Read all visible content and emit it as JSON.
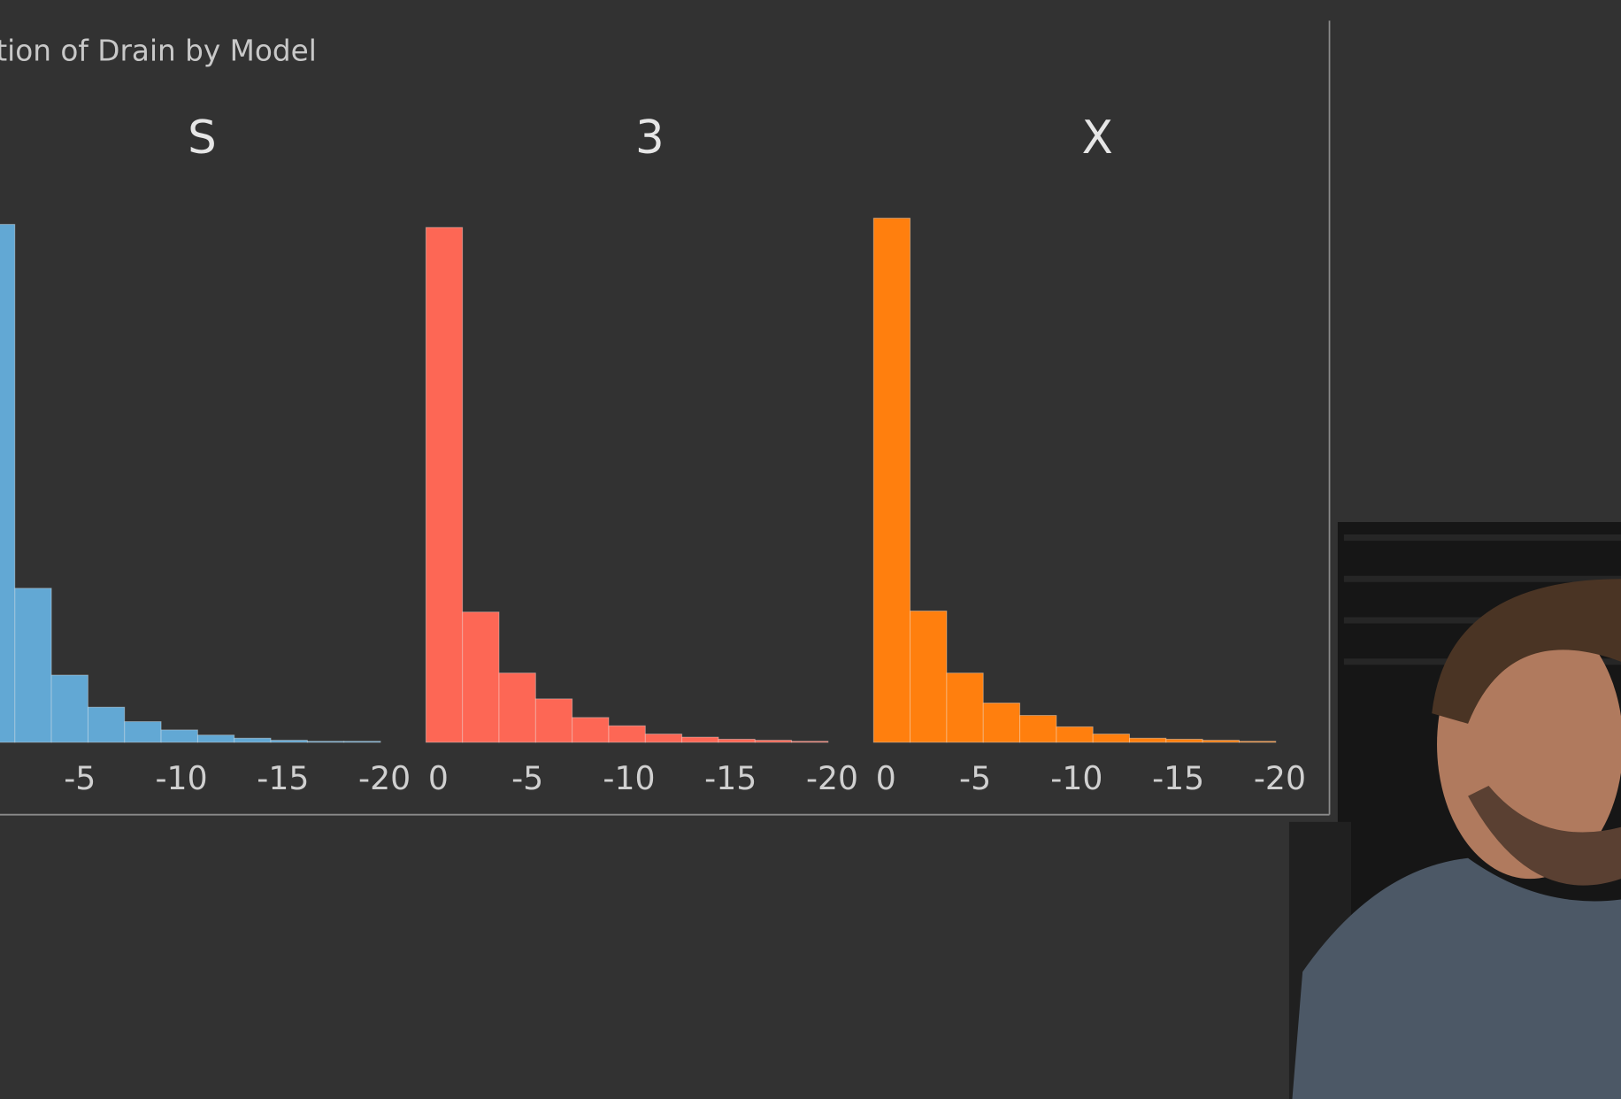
{
  "chart_data": {
    "type": "histogram",
    "title": "tion of Drain by Model",
    "bins": [
      0,
      -1.8,
      -3.6,
      -5.4,
      -7.2,
      -9,
      -10.8,
      -12.6,
      -14.4,
      -16.2,
      -18,
      -19.8
    ],
    "series": [
      {
        "name": "S",
        "color": "#62a8d4",
        "values": [
          501,
          149,
          65,
          34,
          20,
          12,
          7,
          4,
          2,
          1,
          1
        ]
      },
      {
        "name": "3",
        "color": "#fd6755",
        "values": [
          498,
          126,
          67,
          42,
          24,
          16,
          8,
          5,
          3,
          2,
          1
        ]
      },
      {
        "name": "X",
        "color": "#ff7f0e",
        "values": [
          507,
          127,
          67,
          38,
          26,
          15,
          8,
          4,
          3,
          2,
          1
        ]
      }
    ],
    "xlim": [
      0,
      -20
    ],
    "xticks": [
      0,
      -5,
      -10,
      -15,
      -20
    ],
    "ylim": [
      0,
      520
    ],
    "grid": false
  }
}
